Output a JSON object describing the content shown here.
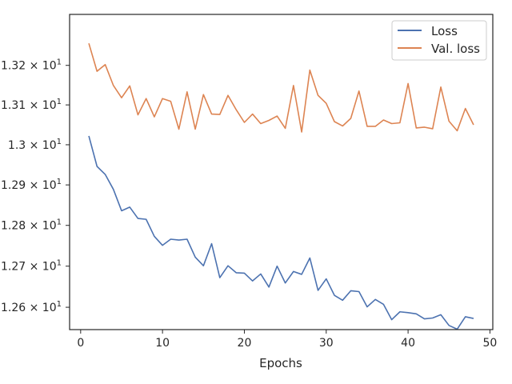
{
  "chart_data": {
    "type": "line",
    "title": "",
    "xlabel": "Epochs",
    "ylabel": "",
    "xlim": [
      -1.35,
      50.35
    ],
    "ylim": [
      12.546,
      13.33
    ],
    "y_scale": "log",
    "grid": false,
    "legend_position": "top-right",
    "x_ticks": [
      {
        "value": 0,
        "label": "0"
      },
      {
        "value": 10,
        "label": "10"
      },
      {
        "value": 20,
        "label": "20"
      },
      {
        "value": 30,
        "label": "30"
      },
      {
        "value": 40,
        "label": "40"
      },
      {
        "value": 50,
        "label": "50"
      }
    ],
    "y_ticks": [
      {
        "value": 12.6,
        "base": "1.26",
        "exp": "1"
      },
      {
        "value": 12.7,
        "base": "1.27",
        "exp": "1"
      },
      {
        "value": 12.8,
        "base": "1.28",
        "exp": "1"
      },
      {
        "value": 12.9,
        "base": "1.29",
        "exp": "1"
      },
      {
        "value": 13.0,
        "base": "1.3",
        "exp": "1"
      },
      {
        "value": 13.1,
        "base": "1.31",
        "exp": "1"
      },
      {
        "value": 13.2,
        "base": "1.32",
        "exp": "1"
      }
    ],
    "x": [
      1,
      2,
      3,
      4,
      5,
      6,
      7,
      8,
      9,
      10,
      11,
      12,
      13,
      14,
      15,
      16,
      17,
      18,
      19,
      20,
      21,
      22,
      23,
      24,
      25,
      26,
      27,
      28,
      29,
      30,
      31,
      32,
      33,
      34,
      35,
      36,
      37,
      38,
      39,
      40,
      41,
      42,
      43,
      44,
      45,
      46,
      47,
      48
    ],
    "series": [
      {
        "name": "Loss",
        "color": "#4c72b0",
        "values": [
          13.022,
          12.946,
          12.926,
          12.889,
          12.836,
          12.845,
          12.817,
          12.815,
          12.773,
          12.751,
          12.766,
          12.764,
          12.766,
          12.722,
          12.701,
          12.755,
          12.672,
          12.701,
          12.684,
          12.683,
          12.664,
          12.681,
          12.649,
          12.7,
          12.659,
          12.687,
          12.68,
          12.72,
          12.641,
          12.669,
          12.629,
          12.617,
          12.64,
          12.638,
          12.601,
          12.619,
          12.607,
          12.57,
          12.589,
          12.587,
          12.584,
          12.572,
          12.574,
          12.582,
          12.556,
          12.547,
          12.577,
          12.573
        ]
      },
      {
        "name": "Val. loss",
        "color": "#dd8452",
        "values": [
          13.256,
          13.185,
          13.202,
          13.149,
          13.118,
          13.148,
          13.075,
          13.116,
          13.07,
          13.116,
          13.109,
          13.039,
          13.133,
          13.039,
          13.126,
          13.077,
          13.076,
          13.124,
          13.088,
          13.056,
          13.077,
          13.053,
          13.061,
          13.072,
          13.041,
          13.149,
          13.032,
          13.188,
          13.124,
          13.104,
          13.058,
          13.047,
          13.066,
          13.135,
          13.046,
          13.046,
          13.062,
          13.053,
          13.055,
          13.154,
          13.042,
          13.044,
          13.04,
          13.145,
          13.059,
          13.035,
          13.091,
          13.05
        ]
      }
    ]
  }
}
